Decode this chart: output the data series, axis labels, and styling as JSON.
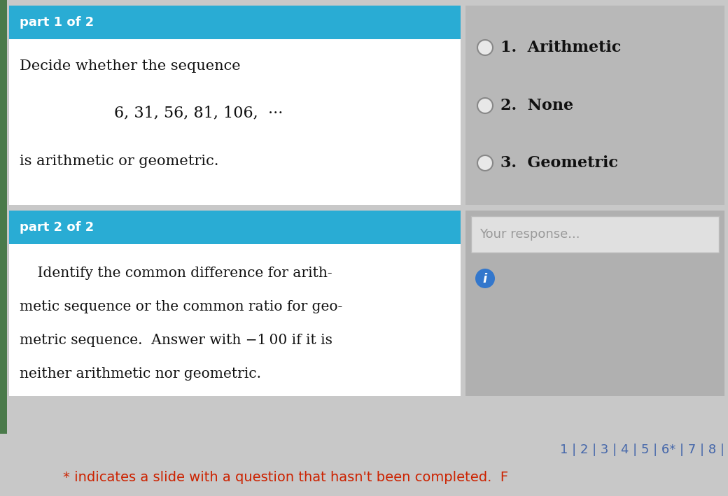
{
  "bg_color": "#c8c8c8",
  "left_panel_bg": "#ffffff",
  "right_top_bg": "#b8b8b8",
  "right_bottom_bg": "#b0b0b0",
  "header_color": "#29acd4",
  "header_text_color": "#ffffff",
  "part1_header": "part 1 of 2",
  "part1_question": "Decide whether the sequence",
  "part1_sequence": "6, 31, 56, 81, 106,  ···",
  "part1_ending": "is arithmetic or geometric.",
  "part2_header": "part 2 of 2",
  "part2_text_lines": [
    "    Identify the common difference for arith-",
    "metic sequence or the common ratio for geo-",
    "metric sequence.  Answer with −1 00 if it is",
    "neither arithmetic nor geometric."
  ],
  "choices": [
    "1.  Arithmetic",
    "2.  None",
    "3.  Geometric"
  ],
  "response_placeholder": "Your response...",
  "nav_text": "1 | 2 | 3 | 4 | 5 | 6* | 7 | 8 |",
  "footer_text": "* indicates a slide with a question that hasn't been completed.  F",
  "footer_color": "#cc2200",
  "nav_color": "#4466aa",
  "left_edge_color": "#4a7a4a",
  "answer_selected": -1
}
